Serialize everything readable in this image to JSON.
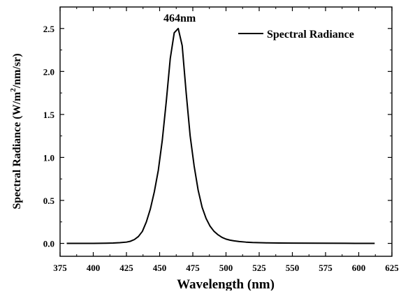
{
  "chart_data": {
    "type": "line",
    "xlabel": "Wavelength (nm)",
    "ylabel_prefix": "Spectral Radiance (W/m",
    "ylabel_sup": "2",
    "ylabel_suffix": "/nm/sr)",
    "xlim": [
      375,
      625
    ],
    "ylim": [
      -0.15,
      2.75
    ],
    "x_ticks": [
      375,
      400,
      425,
      450,
      475,
      500,
      525,
      550,
      575,
      600,
      625
    ],
    "x_tick_labels": [
      "375",
      "400",
      "425",
      "450",
      "475",
      "500",
      "525",
      "550",
      "575",
      "600",
      "625"
    ],
    "y_ticks": [
      0.0,
      0.5,
      1.0,
      1.5,
      2.0,
      2.5
    ],
    "y_tick_labels": [
      "0.0",
      "0.5",
      "1.0",
      "1.5",
      "2.0",
      "2.5"
    ],
    "grid": false,
    "legend_position": "top-right",
    "line_color": "#000000",
    "annotation": {
      "text": "464nm",
      "x": 464,
      "y": 2.5
    },
    "series": [
      {
        "name": "Spectral Radiance",
        "x": [
          380,
          390,
          400,
          405,
          410,
          415,
          420,
          425,
          428,
          431,
          434,
          437,
          440,
          443,
          446,
          449,
          452,
          455,
          458,
          461,
          464,
          467,
          470,
          473,
          476,
          479,
          482,
          485,
          488,
          491,
          494,
          497,
          500,
          503,
          506,
          510,
          515,
          520,
          530,
          540,
          550,
          570,
          590,
          612
        ],
        "values": [
          0.0,
          0.0,
          0.0,
          0.001,
          0.002,
          0.004,
          0.008,
          0.015,
          0.025,
          0.045,
          0.08,
          0.14,
          0.25,
          0.4,
          0.6,
          0.85,
          1.2,
          1.65,
          2.15,
          2.45,
          2.5,
          2.3,
          1.75,
          1.25,
          0.9,
          0.62,
          0.42,
          0.29,
          0.2,
          0.14,
          0.1,
          0.07,
          0.05,
          0.038,
          0.03,
          0.022,
          0.015,
          0.01,
          0.006,
          0.004,
          0.003,
          0.002,
          0.001,
          0.0
        ]
      }
    ]
  }
}
